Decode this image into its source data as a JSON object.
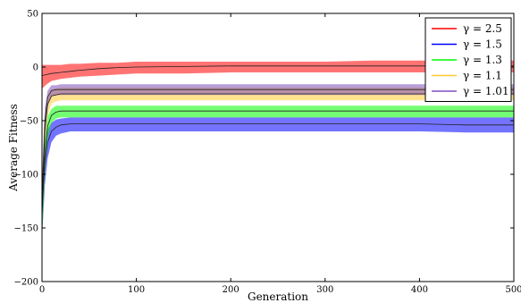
{
  "chart_data": {
    "type": "line",
    "xlabel": "Generation",
    "ylabel": "Average Fitness",
    "xlim": [
      0,
      500
    ],
    "ylim": [
      -200,
      50
    ],
    "xticks": [
      0,
      100,
      200,
      300,
      400,
      500
    ],
    "yticks": [
      50,
      0,
      -50,
      -100,
      -150,
      -200
    ],
    "grid": false,
    "legend_position": "top-right",
    "series": [
      {
        "name": "γ = 2.5",
        "color": "#ff0000",
        "x": [
          0,
          5,
          10,
          20,
          30,
          40,
          60,
          80,
          100,
          150,
          200,
          250,
          300,
          350,
          400,
          450,
          500
        ],
        "mean": [
          -8,
          -7,
          -6,
          -5,
          -4,
          -3,
          -1.5,
          -0.5,
          0,
          0.5,
          1,
          1,
          1,
          1,
          1,
          1,
          1
        ],
        "band_low": [
          -20,
          -16,
          -13,
          -11,
          -10,
          -9,
          -8,
          -7,
          -6,
          -6,
          -5,
          -5,
          -5,
          -5,
          -5,
          -5,
          -5
        ],
        "band_high": [
          2,
          2,
          2,
          2,
          3,
          3,
          4,
          4,
          5,
          5,
          5,
          5,
          5,
          6,
          6,
          6,
          6
        ]
      },
      {
        "name": "γ = 1.5",
        "color": "#0000ff",
        "x": [
          0,
          3,
          6,
          10,
          15,
          20,
          30,
          50,
          100,
          150,
          200,
          250,
          300,
          350,
          400,
          450,
          500
        ],
        "mean": [
          -130,
          -90,
          -70,
          -60,
          -56,
          -54,
          -53,
          -53,
          -53,
          -53,
          -53,
          -53,
          -53,
          -53,
          -53,
          -54,
          -54
        ],
        "band_low": [
          -160,
          -110,
          -85,
          -70,
          -64,
          -62,
          -60,
          -60,
          -60,
          -60,
          -60,
          -60,
          -60,
          -60,
          -60,
          -61,
          -61
        ],
        "band_high": [
          -110,
          -72,
          -58,
          -52,
          -49,
          -48,
          -47,
          -47,
          -47,
          -47,
          -47,
          -47,
          -47,
          -47,
          -47,
          -47,
          -47
        ]
      },
      {
        "name": "γ = 1.3",
        "color": "#00ff00",
        "x": [
          0,
          3,
          6,
          10,
          15,
          20,
          30,
          50,
          100,
          150,
          200,
          250,
          300,
          350,
          400,
          450,
          500
        ],
        "mean": [
          -140,
          -80,
          -55,
          -45,
          -42,
          -41,
          -41,
          -41,
          -41,
          -41,
          -41,
          -41,
          -41,
          -41,
          -41,
          -41,
          -41
        ],
        "band_low": [
          -160,
          -100,
          -66,
          -52,
          -48,
          -47,
          -47,
          -47,
          -47,
          -47,
          -47,
          -47,
          -47,
          -47,
          -47,
          -47,
          -47
        ],
        "band_high": [
          -120,
          -64,
          -46,
          -39,
          -36,
          -36,
          -36,
          -36,
          -36,
          -36,
          -36,
          -36,
          -36,
          -36,
          -36,
          -36,
          -36
        ]
      },
      {
        "name": "γ = 1.1",
        "color": "#ffcc33",
        "x": [
          0,
          3,
          6,
          10,
          15,
          20,
          30,
          50,
          100,
          150,
          200,
          250,
          300,
          350,
          400,
          450,
          500
        ],
        "mean": [
          -130,
          -60,
          -35,
          -27,
          -26,
          -25,
          -25,
          -25,
          -25,
          -25,
          -25,
          -25,
          -25,
          -25,
          -25,
          -25,
          -25
        ],
        "band_low": [
          -150,
          -75,
          -46,
          -34,
          -32,
          -31,
          -31,
          -31,
          -31,
          -31,
          -31,
          -31,
          -31,
          -31,
          -31,
          -31,
          -31
        ],
        "band_high": [
          -110,
          -46,
          -27,
          -21,
          -20,
          -19,
          -19,
          -19,
          -19,
          -19,
          -19,
          -19,
          -19,
          -19,
          -19,
          -19,
          -19
        ]
      },
      {
        "name": "γ = 1.01",
        "color": "#7f4fbf",
        "x": [
          0,
          3,
          6,
          10,
          15,
          20,
          30,
          50,
          100,
          150,
          200,
          250,
          300,
          350,
          400,
          450,
          500
        ],
        "mean": [
          -125,
          -50,
          -28,
          -22,
          -21,
          -21,
          -21,
          -21,
          -21,
          -21,
          -21,
          -21,
          -21,
          -21,
          -21,
          -21,
          -21
        ],
        "band_low": [
          -145,
          -62,
          -36,
          -27,
          -26,
          -26,
          -26,
          -26,
          -26,
          -26,
          -26,
          -26,
          -26,
          -26,
          -26,
          -26,
          -26
        ],
        "band_high": [
          -105,
          -38,
          -22,
          -17,
          -17,
          -16,
          -16,
          -16,
          -16,
          -16,
          -16,
          -16,
          -16,
          -16,
          -16,
          -16,
          -16
        ]
      }
    ]
  }
}
